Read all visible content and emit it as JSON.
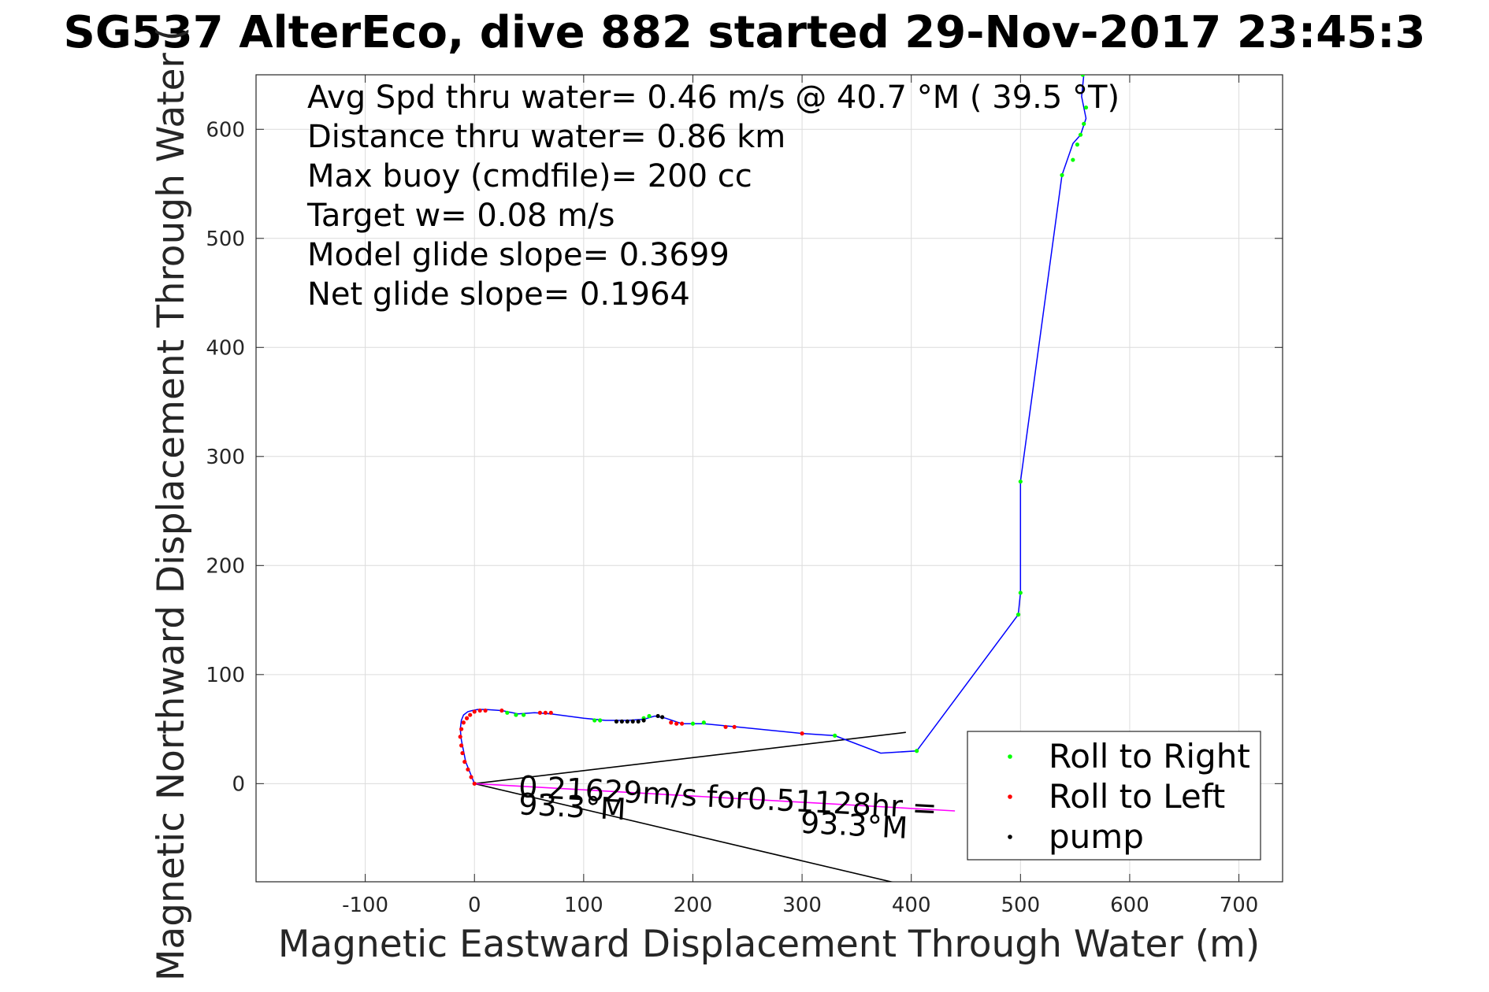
{
  "chart_data": {
    "type": "line",
    "title": "SG537 AlterEco, dive 882 started 29-Nov-2017 23:45:3",
    "xlabel": "Magnetic Eastward Displacement Through Water (m)",
    "ylabel": "Magnetic Northward Displacement Through Water (",
    "xlim": [
      -200,
      740
    ],
    "ylim": [
      -90,
      650
    ],
    "xticks": [
      -100,
      0,
      100,
      200,
      300,
      400,
      500,
      600,
      700
    ],
    "yticks": [
      0,
      100,
      200,
      300,
      400,
      500,
      600
    ],
    "xtick_labels": [
      "-100",
      "0",
      "100",
      "200",
      "300",
      "400",
      "500",
      "600",
      "700"
    ],
    "ytick_labels": [
      "0",
      "100",
      "200",
      "300",
      "400",
      "500",
      "600"
    ],
    "grid": true,
    "stats_text": [
      "Avg Spd thru water=  0.46 m/s @  40.7 °M ( 39.5 °T)",
      "Distance thru water=  0.86 km",
      "Max buoy (cmdfile)= 200 cc",
      "Target w= 0.08 m/s",
      "Model glide slope= 0.3699",
      "Net glide slope= 0.1964"
    ],
    "track": {
      "color": "#0000ff",
      "x": [
        0,
        -4,
        -8,
        -10,
        -12,
        -13,
        -12,
        -10,
        -6,
        -2,
        3,
        10,
        25,
        40,
        55,
        70,
        100,
        120,
        140,
        155,
        165,
        175,
        190,
        210,
        240,
        300,
        330,
        372,
        405,
        498,
        500,
        500,
        538,
        548,
        555,
        560,
        556,
        558
      ],
      "y": [
        0,
        10,
        20,
        30,
        40,
        50,
        58,
        63,
        66,
        67,
        68,
        68,
        67,
        64,
        65,
        64,
        60,
        58,
        58,
        59,
        62,
        60,
        55,
        55,
        52,
        46,
        44,
        28,
        30,
        155,
        175,
        277,
        558,
        587,
        595,
        610,
        630,
        650
      ]
    },
    "current_vector": {
      "color": "#ff00ff",
      "x": [
        0,
        440
      ],
      "y": [
        0,
        -25
      ]
    },
    "wedge_lines": {
      "color": "#000000",
      "lines": [
        {
          "x": [
            0,
            395
          ],
          "y": [
            0,
            47
          ]
        },
        {
          "x": [
            0,
            390
          ],
          "y": [
            0,
            -92
          ]
        }
      ]
    },
    "series": [
      {
        "name": "Roll to Right",
        "color": "#00ff00",
        "x": [
          30,
          38,
          45,
          110,
          115,
          155,
          160,
          200,
          210,
          330,
          405,
          498,
          500,
          500,
          538,
          548,
          552,
          555,
          558,
          560,
          557
        ],
        "y": [
          65,
          63,
          63,
          58,
          58,
          60,
          62,
          55,
          56,
          44,
          30,
          155,
          175,
          277,
          558,
          572,
          586,
          595,
          605,
          620,
          650
        ]
      },
      {
        "name": "Roll to Left",
        "color": "#ff0000",
        "x": [
          0,
          -3,
          -6,
          -9,
          -11,
          -12,
          -13,
          -12,
          -10,
          -7,
          -4,
          0,
          5,
          10,
          25,
          60,
          65,
          70,
          180,
          185,
          190,
          230,
          238,
          300
        ],
        "y": [
          0,
          6,
          13,
          20,
          28,
          35,
          43,
          50,
          56,
          60,
          63,
          66,
          67,
          67,
          67,
          65,
          65,
          65,
          56,
          55,
          55,
          52,
          52,
          46
        ]
      },
      {
        "name": "pump",
        "color": "#000000",
        "x": [
          130,
          135,
          140,
          145,
          150,
          155,
          168,
          172
        ],
        "y": [
          57,
          57,
          57,
          57,
          57,
          58,
          62,
          61
        ]
      }
    ],
    "annotations": [
      {
        "text": "0.21629m/s for0.51128hr =",
        "x": 40,
        "y": -12,
        "angle_deg": 3
      },
      {
        "text": "93.3°M",
        "x": 40,
        "y": -28,
        "angle_deg": 3
      },
      {
        "text": "93.3°M",
        "x": 298,
        "y": -45,
        "angle_deg": 3
      }
    ],
    "legend": {
      "position": "bottom-right",
      "entries": [
        "Roll to Right",
        "Roll to Left",
        "pump"
      ]
    }
  }
}
